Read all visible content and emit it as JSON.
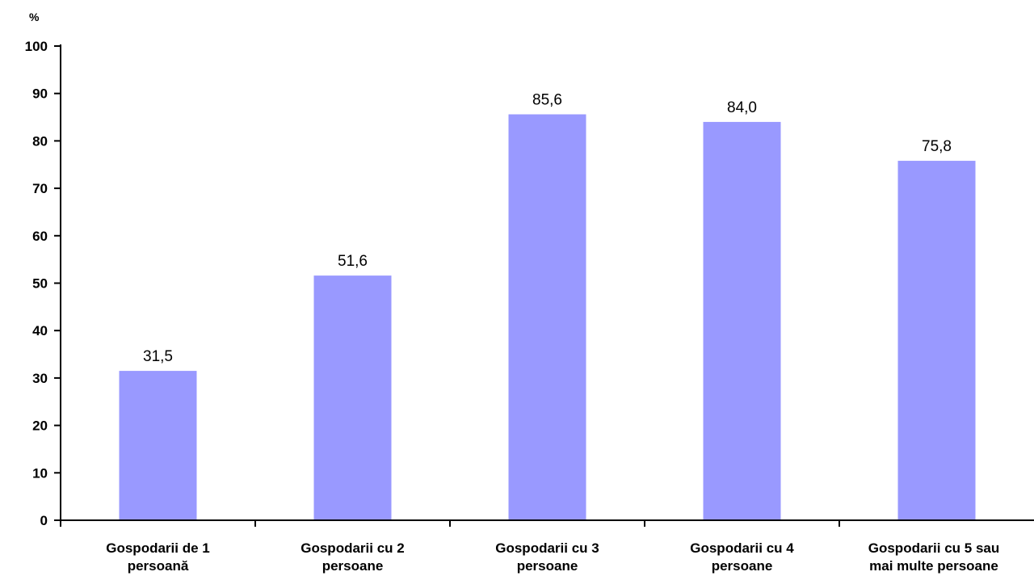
{
  "chart_data": {
    "type": "bar",
    "unit_label": "%",
    "categories": [
      [
        "Gospodarii de 1",
        "persoană"
      ],
      [
        "Gospodarii cu 2",
        "persoane"
      ],
      [
        "Gospodarii cu 3",
        "persoane"
      ],
      [
        "Gospodarii cu 4",
        "persoane"
      ],
      [
        "Gospodarii cu 5 sau",
        "mai multe persoane"
      ]
    ],
    "values": [
      31.5,
      51.6,
      85.6,
      84.0,
      75.8
    ],
    "value_labels": [
      "31,5",
      "51,6",
      "85,6",
      "84,0",
      "75,8"
    ],
    "ylim": [
      0,
      100
    ],
    "yticks": [
      0,
      10,
      20,
      30,
      40,
      50,
      60,
      70,
      80,
      90,
      100
    ],
    "bar_color": "#9999ff",
    "grid": false,
    "legend": "none"
  }
}
